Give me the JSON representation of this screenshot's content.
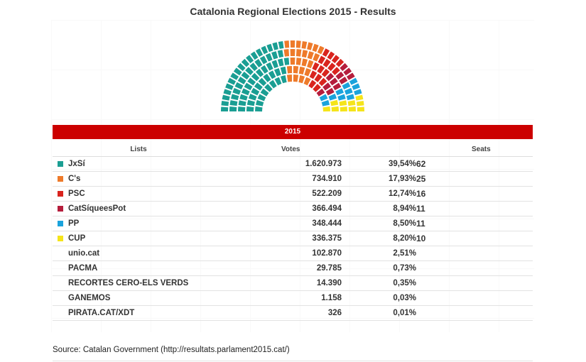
{
  "title": "Catalonia Regional Elections 2015 - Results",
  "year_label": "2015",
  "columns": {
    "lists": "Lists",
    "votes": "Votes",
    "seats": "Seats"
  },
  "source": "Source: Catalan Government (http://resultats.parlament2015.cat/)",
  "chart_data": [
    {
      "type": "hemicycle",
      "rows": 5,
      "series": [
        {
          "name": "JxSí",
          "value": 62,
          "color": "#1a9e93"
        },
        {
          "name": "C's",
          "value": 25,
          "color": "#ee7a2a"
        },
        {
          "name": "PSC",
          "value": 16,
          "color": "#d9241e"
        },
        {
          "name": "CatSíqueesPot",
          "value": 11,
          "color": "#b51d3c"
        },
        {
          "name": "PP",
          "value": 11,
          "color": "#1aa3dc"
        },
        {
          "name": "CUP",
          "value": 10,
          "color": "#f5e41a"
        }
      ]
    },
    {
      "type": "table",
      "rows": [
        {
          "list": "JxSí",
          "votes": "1.620.973",
          "pct": "39,54%",
          "seats": "62",
          "color": "#1a9e93"
        },
        {
          "list": "C's",
          "votes": "734.910",
          "pct": "17,93%",
          "seats": "25",
          "color": "#ee7a2a"
        },
        {
          "list": "PSC",
          "votes": "522.209",
          "pct": "12,74%",
          "seats": "16",
          "color": "#d9241e"
        },
        {
          "list": "CatSíqueesPot",
          "votes": "366.494",
          "pct": "8,94%",
          "seats": "11",
          "color": "#b51d3c"
        },
        {
          "list": "PP",
          "votes": "348.444",
          "pct": "8,50%",
          "seats": "11",
          "color": "#1aa3dc"
        },
        {
          "list": "CUP",
          "votes": "336.375",
          "pct": "8,20%",
          "seats": "10",
          "color": "#f5e41a"
        },
        {
          "list": "unio.cat",
          "votes": "102.870",
          "pct": "2,51%",
          "seats": "",
          "color": ""
        },
        {
          "list": "PACMA",
          "votes": "29.785",
          "pct": "0,73%",
          "seats": "",
          "color": ""
        },
        {
          "list": "RECORTES CERO-ELS VERDS",
          "votes": "14.390",
          "pct": "0,35%",
          "seats": "",
          "color": ""
        },
        {
          "list": "GANEMOS",
          "votes": "1.158",
          "pct": "0,03%",
          "seats": "",
          "color": ""
        },
        {
          "list": "PIRATA.CAT/XDT",
          "votes": "326",
          "pct": "0,01%",
          "seats": "",
          "color": ""
        }
      ]
    }
  ]
}
